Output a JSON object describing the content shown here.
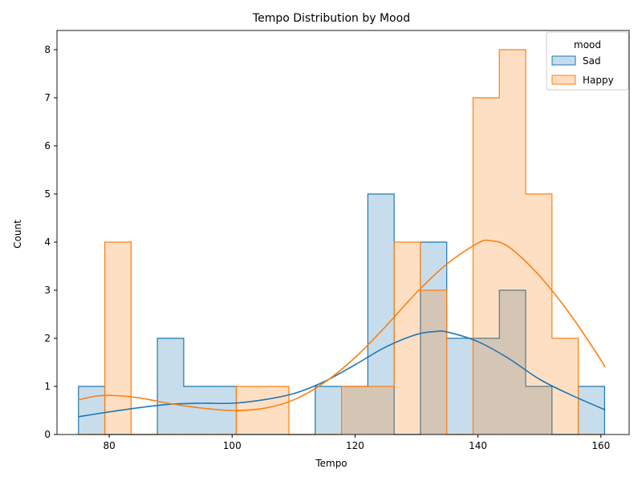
{
  "chart_data": {
    "type": "histogram",
    "title": "Tempo Distribution by Mood",
    "xlabel": "Tempo",
    "ylabel": "Count",
    "xlim": [
      71.5,
      164.6
    ],
    "ylim": [
      0,
      8.4
    ],
    "xticks": [
      80,
      100,
      120,
      140,
      160
    ],
    "yticks": [
      0,
      1,
      2,
      3,
      4,
      5,
      6,
      7,
      8
    ],
    "bin_edges": [
      75.0,
      79.28,
      83.56,
      87.84,
      92.12,
      96.4,
      100.68,
      104.96,
      109.24,
      113.52,
      117.8,
      122.08,
      126.36,
      130.64,
      134.92,
      139.2,
      143.48,
      147.76,
      152.04,
      156.32,
      160.6
    ],
    "legend": {
      "title": "mood",
      "position": "upper right"
    },
    "series": [
      {
        "name": "Sad",
        "color": "#1f77b4",
        "fill": "#c5dbee",
        "counts": [
          1,
          0,
          0,
          2,
          1,
          1,
          0,
          0,
          0,
          1,
          1,
          5,
          0,
          4,
          2,
          2,
          3,
          1,
          0,
          1
        ],
        "kde": [
          [
            75,
            0.37
          ],
          [
            80,
            0.47
          ],
          [
            85,
            0.56
          ],
          [
            90,
            0.63
          ],
          [
            95,
            0.65
          ],
          [
            100,
            0.65
          ],
          [
            105,
            0.72
          ],
          [
            110,
            0.85
          ],
          [
            115,
            1.1
          ],
          [
            120,
            1.45
          ],
          [
            125,
            1.82
          ],
          [
            130,
            2.08
          ],
          [
            133,
            2.14
          ],
          [
            135,
            2.13
          ],
          [
            140,
            1.93
          ],
          [
            145,
            1.58
          ],
          [
            150,
            1.15
          ],
          [
            155,
            0.83
          ],
          [
            160,
            0.55
          ],
          [
            160.6,
            0.52
          ]
        ]
      },
      {
        "name": "Happy",
        "color": "#ff7f0e",
        "fill": "#ffdcc2",
        "counts": [
          0,
          4,
          0,
          0,
          0,
          0,
          1,
          1,
          0,
          0,
          1,
          1,
          4,
          3,
          0,
          7,
          8,
          5,
          2,
          0
        ],
        "kde": [
          [
            75,
            0.72
          ],
          [
            78,
            0.8
          ],
          [
            81,
            0.81
          ],
          [
            85,
            0.76
          ],
          [
            90,
            0.64
          ],
          [
            95,
            0.55
          ],
          [
            100,
            0.5
          ],
          [
            105,
            0.54
          ],
          [
            110,
            0.72
          ],
          [
            115,
            1.08
          ],
          [
            120,
            1.6
          ],
          [
            125,
            2.25
          ],
          [
            130,
            2.95
          ],
          [
            135,
            3.55
          ],
          [
            140,
            3.98
          ],
          [
            142,
            4.03
          ],
          [
            145,
            3.9
          ],
          [
            150,
            3.3
          ],
          [
            155,
            2.5
          ],
          [
            160,
            1.55
          ],
          [
            160.6,
            1.4
          ]
        ]
      }
    ]
  }
}
